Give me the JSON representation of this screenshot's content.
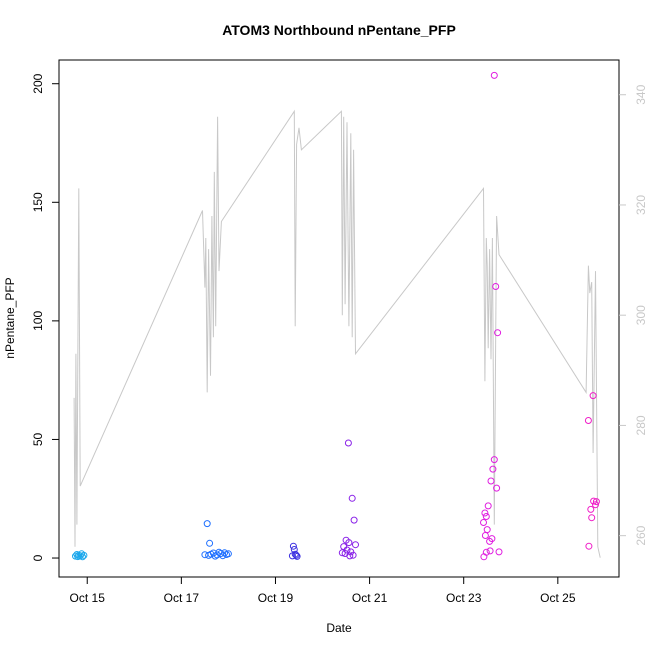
{
  "chart_data": {
    "type": "scatter",
    "title": "ATOM3 Northbound nPentane_PFP",
    "xlabel": "Date",
    "ylabel": "nPentane_PFP",
    "x_ticks": [
      "Oct 15",
      "Oct 17",
      "Oct 19",
      "Oct 21",
      "Oct 23",
      "Oct 25"
    ],
    "x_tick_days": [
      15,
      17,
      19,
      21,
      23,
      25
    ],
    "xlim": [
      14.4,
      26.3
    ],
    "ylim": [
      -8,
      210
    ],
    "y_ticks": [
      "0",
      "50",
      "100",
      "150",
      "200"
    ],
    "y_tick_values": [
      0,
      50,
      100,
      150,
      200
    ],
    "y2lim": [
      252.5,
      346.3
    ],
    "y2_ticks": [
      "260",
      "280",
      "300",
      "320",
      "340"
    ],
    "y2_tick_values": [
      260,
      280,
      300,
      320,
      340
    ],
    "secondary_series_color": "#c8c8c8",
    "grid": false,
    "points": [
      {
        "x": 14.75,
        "y": 0.8,
        "color": "#1aa7ec"
      },
      {
        "x": 14.78,
        "y": 1.5,
        "color": "#1aa7ec"
      },
      {
        "x": 14.8,
        "y": 0.6,
        "color": "#1aa7ec"
      },
      {
        "x": 14.82,
        "y": 1.2,
        "color": "#1aa7ec"
      },
      {
        "x": 14.85,
        "y": 0.9,
        "color": "#1aa7ec"
      },
      {
        "x": 14.88,
        "y": 1.8,
        "color": "#1aa7ec"
      },
      {
        "x": 14.9,
        "y": 0.5,
        "color": "#1aa7ec"
      },
      {
        "x": 14.93,
        "y": 1.1,
        "color": "#1aa7ec"
      },
      {
        "x": 17.55,
        "y": 14.5,
        "color": "#1e6fff"
      },
      {
        "x": 17.6,
        "y": 6.2,
        "color": "#1e6fff"
      },
      {
        "x": 17.5,
        "y": 1.4,
        "color": "#1e6fff"
      },
      {
        "x": 17.58,
        "y": 1.1,
        "color": "#1e6fff"
      },
      {
        "x": 17.63,
        "y": 1.6,
        "color": "#1e6fff"
      },
      {
        "x": 17.68,
        "y": 2.1,
        "color": "#1e6fff"
      },
      {
        "x": 17.72,
        "y": 0.8,
        "color": "#1e6fff"
      },
      {
        "x": 17.76,
        "y": 1.3,
        "color": "#1e6fff"
      },
      {
        "x": 17.8,
        "y": 2.4,
        "color": "#1e6fff"
      },
      {
        "x": 17.84,
        "y": 1.9,
        "color": "#1e6fff"
      },
      {
        "x": 17.88,
        "y": 1.0,
        "color": "#1e6fff"
      },
      {
        "x": 17.92,
        "y": 2.2,
        "color": "#1e6fff"
      },
      {
        "x": 17.96,
        "y": 1.5,
        "color": "#1e6fff"
      },
      {
        "x": 18.0,
        "y": 1.8,
        "color": "#1e6fff"
      },
      {
        "x": 19.38,
        "y": 5.0,
        "color": "#3b2fe0"
      },
      {
        "x": 19.4,
        "y": 3.6,
        "color": "#3b2fe0"
      },
      {
        "x": 19.42,
        "y": 1.6,
        "color": "#3b2fe0"
      },
      {
        "x": 19.36,
        "y": 0.9,
        "color": "#3b2fe0"
      },
      {
        "x": 19.44,
        "y": 1.2,
        "color": "#3b2fe0"
      },
      {
        "x": 19.46,
        "y": 0.7,
        "color": "#3b2fe0"
      },
      {
        "x": 20.55,
        "y": 48.5,
        "color": "#8a22e8"
      },
      {
        "x": 20.63,
        "y": 25.2,
        "color": "#8a22e8"
      },
      {
        "x": 20.67,
        "y": 16.0,
        "color": "#8a22e8"
      },
      {
        "x": 20.5,
        "y": 7.5,
        "color": "#8a22e8"
      },
      {
        "x": 20.56,
        "y": 6.5,
        "color": "#8a22e8"
      },
      {
        "x": 20.45,
        "y": 4.8,
        "color": "#8a22e8"
      },
      {
        "x": 20.52,
        "y": 3.4,
        "color": "#8a22e8"
      },
      {
        "x": 20.6,
        "y": 2.6,
        "color": "#8a22e8"
      },
      {
        "x": 20.48,
        "y": 1.9,
        "color": "#8a22e8"
      },
      {
        "x": 20.65,
        "y": 1.2,
        "color": "#8a22e8"
      },
      {
        "x": 20.42,
        "y": 2.2,
        "color": "#8a22e8"
      },
      {
        "x": 20.58,
        "y": 0.9,
        "color": "#8a22e8"
      },
      {
        "x": 20.7,
        "y": 5.6,
        "color": "#8a22e8"
      },
      {
        "x": 23.65,
        "y": 203.5,
        "color": "#e01ee0"
      },
      {
        "x": 23.68,
        "y": 114.5,
        "color": "#e01ee0"
      },
      {
        "x": 23.72,
        "y": 95.0,
        "color": "#e01ee0"
      },
      {
        "x": 23.65,
        "y": 41.5,
        "color": "#e01ee0"
      },
      {
        "x": 23.62,
        "y": 37.5,
        "color": "#e01ee0"
      },
      {
        "x": 23.58,
        "y": 32.5,
        "color": "#e01ee0"
      },
      {
        "x": 23.7,
        "y": 29.5,
        "color": "#e01ee0"
      },
      {
        "x": 23.52,
        "y": 22.0,
        "color": "#e01ee0"
      },
      {
        "x": 23.45,
        "y": 19.0,
        "color": "#e01ee0"
      },
      {
        "x": 23.48,
        "y": 17.5,
        "color": "#e01ee0"
      },
      {
        "x": 23.42,
        "y": 15.0,
        "color": "#e01ee0"
      },
      {
        "x": 23.5,
        "y": 12.0,
        "color": "#e01ee0"
      },
      {
        "x": 23.46,
        "y": 9.5,
        "color": "#e01ee0"
      },
      {
        "x": 23.6,
        "y": 8.2,
        "color": "#e01ee0"
      },
      {
        "x": 23.55,
        "y": 7.0,
        "color": "#e01ee0"
      },
      {
        "x": 23.56,
        "y": 3.0,
        "color": "#e01ee0"
      },
      {
        "x": 23.48,
        "y": 2.4,
        "color": "#e01ee0"
      },
      {
        "x": 23.75,
        "y": 2.6,
        "color": "#e01ee0"
      },
      {
        "x": 23.43,
        "y": 0.5,
        "color": "#e01ee0"
      },
      {
        "x": 25.65,
        "y": 58.0,
        "color": "#f01ec8"
      },
      {
        "x": 25.75,
        "y": 68.5,
        "color": "#f01ec8"
      },
      {
        "x": 25.76,
        "y": 24.0,
        "color": "#f01ec8"
      },
      {
        "x": 25.82,
        "y": 23.8,
        "color": "#f01ec8"
      },
      {
        "x": 25.8,
        "y": 22.5,
        "color": "#f01ec8"
      },
      {
        "x": 25.7,
        "y": 20.5,
        "color": "#f01ec8"
      },
      {
        "x": 25.72,
        "y": 17.0,
        "color": "#f01ec8"
      },
      {
        "x": 25.66,
        "y": 5.0,
        "color": "#f01ec8"
      }
    ],
    "secondary_line": [
      [
        14.72,
        285
      ],
      [
        14.74,
        258
      ],
      [
        14.76,
        293
      ],
      [
        14.78,
        262
      ],
      [
        14.82,
        323
      ],
      [
        14.85,
        269
      ],
      [
        17.45,
        319
      ],
      [
        17.5,
        305
      ],
      [
        17.52,
        314
      ],
      [
        17.55,
        286
      ],
      [
        17.58,
        312
      ],
      [
        17.62,
        289
      ],
      [
        17.65,
        318
      ],
      [
        17.68,
        296
      ],
      [
        17.7,
        326
      ],
      [
        17.73,
        298
      ],
      [
        17.77,
        336
      ],
      [
        17.8,
        308
      ],
      [
        17.85,
        317
      ],
      [
        19.4,
        337
      ],
      [
        19.42,
        298
      ],
      [
        19.45,
        331
      ],
      [
        19.5,
        334
      ],
      [
        19.55,
        330
      ],
      [
        20.4,
        337
      ],
      [
        20.42,
        300
      ],
      [
        20.45,
        336
      ],
      [
        20.48,
        302
      ],
      [
        20.52,
        335
      ],
      [
        20.56,
        298
      ],
      [
        20.6,
        333
      ],
      [
        20.63,
        296
      ],
      [
        20.66,
        330
      ],
      [
        20.7,
        293
      ],
      [
        23.42,
        323
      ],
      [
        23.45,
        288
      ],
      [
        23.48,
        314
      ],
      [
        23.5,
        309
      ],
      [
        23.52,
        294
      ],
      [
        23.55,
        312
      ],
      [
        23.58,
        292
      ],
      [
        23.61,
        314
      ],
      [
        23.65,
        262
      ],
      [
        23.7,
        318
      ],
      [
        23.75,
        311
      ],
      [
        25.6,
        286
      ],
      [
        25.65,
        309
      ],
      [
        25.68,
        304
      ],
      [
        25.72,
        306
      ],
      [
        25.75,
        275
      ],
      [
        25.8,
        308
      ],
      [
        25.85,
        258
      ],
      [
        25.9,
        256
      ]
    ]
  }
}
